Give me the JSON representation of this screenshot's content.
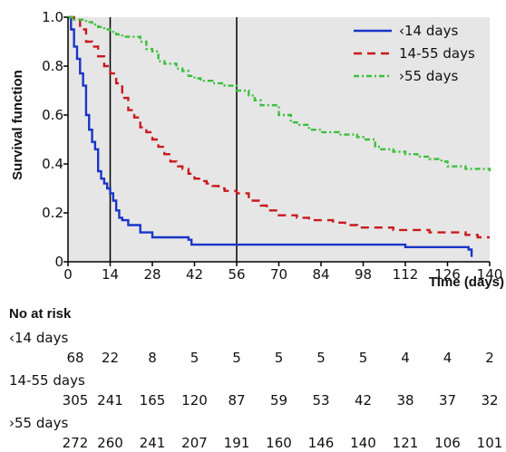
{
  "chart_data": {
    "type": "line",
    "title": "",
    "xlabel": "Time (days)",
    "ylabel": "Survival function",
    "xlim": [
      0,
      140
    ],
    "ylim": [
      0,
      1.0
    ],
    "xticks": [
      0,
      14,
      28,
      42,
      56,
      70,
      84,
      98,
      112,
      126,
      140
    ],
    "yticks": [
      0,
      0.2,
      0.4,
      0.6,
      0.8,
      1.0
    ],
    "ytick_labels": [
      "0",
      "0.2",
      "0.4",
      "0.6",
      "0.8",
      "1.0"
    ],
    "reference_lines_x": [
      14,
      56
    ],
    "plot_background": "#e6e6e6",
    "legend_position": "top-right",
    "series": [
      {
        "name": "‹14 days",
        "color": "#1a35c8",
        "dash": "solid",
        "step": true,
        "x": [
          0,
          1,
          2,
          3,
          4,
          5,
          6,
          7,
          8,
          9,
          10,
          11,
          12,
          13,
          14,
          15,
          16,
          17,
          18,
          20,
          22,
          24,
          28,
          40,
          41,
          112,
          133,
          134
        ],
        "y": [
          1.0,
          0.95,
          0.88,
          0.83,
          0.77,
          0.72,
          0.6,
          0.54,
          0.49,
          0.46,
          0.37,
          0.34,
          0.32,
          0.3,
          0.28,
          0.25,
          0.21,
          0.18,
          0.17,
          0.15,
          0.15,
          0.12,
          0.1,
          0.09,
          0.07,
          0.06,
          0.05,
          0.02
        ]
      },
      {
        "name": "14-55 days",
        "color": "#c8191e",
        "dash": "dashed",
        "step": true,
        "x": [
          0,
          2,
          4,
          6,
          8,
          10,
          12,
          14,
          16,
          18,
          20,
          22,
          24,
          26,
          28,
          30,
          32,
          34,
          36,
          38,
          40,
          42,
          44,
          46,
          48,
          50,
          52,
          54,
          56,
          60,
          64,
          66,
          70,
          76,
          80,
          84,
          88,
          92,
          96,
          100,
          108,
          112,
          120,
          126,
          132,
          136,
          140
        ],
        "y": [
          1.0,
          0.99,
          0.95,
          0.9,
          0.88,
          0.84,
          0.8,
          0.77,
          0.73,
          0.67,
          0.62,
          0.59,
          0.55,
          0.53,
          0.5,
          0.47,
          0.44,
          0.41,
          0.39,
          0.38,
          0.36,
          0.34,
          0.33,
          0.32,
          0.31,
          0.3,
          0.29,
          0.29,
          0.28,
          0.25,
          0.23,
          0.21,
          0.19,
          0.18,
          0.17,
          0.17,
          0.16,
          0.15,
          0.14,
          0.14,
          0.13,
          0.13,
          0.12,
          0.12,
          0.11,
          0.1,
          0.1
        ]
      },
      {
        "name": "›55 days",
        "color": "#3cbf3c",
        "dash": "dashdot",
        "step": true,
        "x": [
          0,
          2,
          4,
          6,
          8,
          10,
          12,
          14,
          16,
          18,
          20,
          24,
          26,
          28,
          30,
          32,
          36,
          38,
          40,
          42,
          44,
          48,
          52,
          56,
          60,
          62,
          64,
          70,
          74,
          76,
          80,
          84,
          90,
          96,
          98,
          102,
          104,
          108,
          112,
          116,
          120,
          124,
          126,
          132,
          136,
          140
        ],
        "y": [
          1.0,
          0.99,
          0.99,
          0.98,
          0.97,
          0.96,
          0.95,
          0.94,
          0.93,
          0.92,
          0.92,
          0.9,
          0.87,
          0.86,
          0.82,
          0.81,
          0.79,
          0.78,
          0.76,
          0.75,
          0.74,
          0.73,
          0.72,
          0.7,
          0.68,
          0.66,
          0.64,
          0.6,
          0.57,
          0.56,
          0.54,
          0.53,
          0.52,
          0.51,
          0.5,
          0.47,
          0.46,
          0.45,
          0.44,
          0.43,
          0.42,
          0.41,
          0.39,
          0.38,
          0.38,
          0.37
        ]
      }
    ]
  },
  "at_risk": {
    "title": "No at risk",
    "groups": [
      {
        "label": "‹14 days",
        "values": [
          "68",
          "22",
          "8",
          "5",
          "5",
          "5",
          "5",
          "5",
          "4",
          "4",
          "2"
        ]
      },
      {
        "label": "14-55 days",
        "values": [
          "305",
          "241",
          "165",
          "120",
          "87",
          "59",
          "53",
          "42",
          "38",
          "37",
          "32"
        ]
      },
      {
        "label": "›55 days",
        "values": [
          "272",
          "260",
          "241",
          "207",
          "191",
          "160",
          "146",
          "140",
          "121",
          "106",
          "101"
        ]
      }
    ]
  }
}
